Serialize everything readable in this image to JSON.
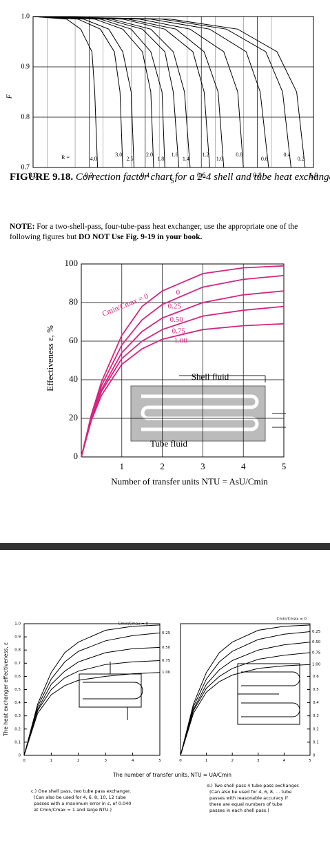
{
  "chart_data": [
    {
      "type": "line",
      "x_label": "S",
      "y_label": "F",
      "annotation": "R =",
      "color": "#000000",
      "grid": true,
      "xlim": [
        0,
        1
      ],
      "xticks": [
        {
          "value": 0,
          "label": "0.0"
        },
        0.2,
        0.4,
        0.6,
        0.8,
        {
          "value": 1,
          "label": "1.0"
        }
      ],
      "ylim": [
        0.7,
        1
      ],
      "yticks": [
        0.7,
        0.8,
        0.9,
        {
          "value": 1,
          "label": "1.0"
        }
      ],
      "series": [
        {
          "name": "4.0",
          "x": [
            0,
            0.12,
            0.17,
            0.21,
            0.22,
            0.23
          ],
          "values": [
            1,
            0.995,
            0.975,
            0.93,
            0.85,
            0.7
          ]
        },
        {
          "name": "3.0",
          "x": [
            0,
            0.16,
            0.24,
            0.29,
            0.31,
            0.32
          ],
          "values": [
            1,
            0.995,
            0.975,
            0.93,
            0.85,
            0.7
          ]
        },
        {
          "name": "2.5",
          "x": [
            0,
            0.18,
            0.27,
            0.32,
            0.35,
            0.36
          ],
          "values": [
            1,
            0.995,
            0.975,
            0.93,
            0.85,
            0.7
          ]
        },
        {
          "name": "2.0",
          "x": [
            0,
            0.22,
            0.32,
            0.39,
            0.42,
            0.43
          ],
          "values": [
            1,
            0.995,
            0.975,
            0.93,
            0.85,
            0.7
          ]
        },
        {
          "name": "1.8",
          "x": [
            0,
            0.24,
            0.35,
            0.42,
            0.46,
            0.47
          ],
          "values": [
            1,
            0.995,
            0.975,
            0.93,
            0.85,
            0.7
          ]
        },
        {
          "name": "1.6",
          "x": [
            0,
            0.26,
            0.39,
            0.47,
            0.5,
            0.52
          ],
          "values": [
            1,
            0.995,
            0.975,
            0.93,
            0.85,
            0.7
          ]
        },
        {
          "name": "1.4",
          "x": [
            0,
            0.28,
            0.42,
            0.5,
            0.54,
            0.56
          ],
          "values": [
            1,
            0.995,
            0.975,
            0.93,
            0.85,
            0.7
          ]
        },
        {
          "name": "1.2",
          "x": [
            0,
            0.32,
            0.47,
            0.57,
            0.61,
            0.63
          ],
          "values": [
            1,
            0.995,
            0.975,
            0.93,
            0.85,
            0.7
          ]
        },
        {
          "name": "1.0",
          "x": [
            0,
            0.34,
            0.51,
            0.61,
            0.66,
            0.68
          ],
          "values": [
            1,
            0.995,
            0.975,
            0.93,
            0.85,
            0.7
          ]
        },
        {
          "name": "0.8",
          "x": [
            0,
            0.38,
            0.56,
            0.68,
            0.73,
            0.75
          ],
          "values": [
            1,
            0.995,
            0.975,
            0.93,
            0.85,
            0.7
          ]
        },
        {
          "name": "0.6",
          "x": [
            0,
            0.42,
            0.63,
            0.76,
            0.81,
            0.84
          ],
          "values": [
            1,
            0.995,
            0.975,
            0.93,
            0.85,
            0.7
          ]
        },
        {
          "name": "0.4",
          "x": [
            0,
            0.46,
            0.69,
            0.83,
            0.89,
            0.92
          ],
          "values": [
            1,
            0.995,
            0.975,
            0.93,
            0.85,
            0.7
          ]
        },
        {
          "name": "0.2",
          "x": [
            0,
            0.49,
            0.73,
            0.87,
            0.94,
            0.97
          ],
          "values": [
            1,
            0.995,
            0.975,
            0.93,
            0.85,
            0.7
          ]
        }
      ]
    },
    {
      "type": "line",
      "x_label": "Number of transfer units NTU = AsU/Cmin",
      "y_label": "Effectiveness ε, %",
      "annotation": "Cmin/Cmax = 0",
      "labels": [
        "Shell fluid",
        "Tube fluid"
      ],
      "color": "#d6247f",
      "grid": true,
      "xlim": [
        0,
        5
      ],
      "xticks": [
        1,
        2,
        3,
        4,
        5
      ],
      "ylim": [
        0,
        100
      ],
      "yticks": [
        0,
        20,
        40,
        60,
        80,
        100
      ],
      "x": [
        0,
        0.25,
        0.5,
        1,
        1.5,
        2,
        3,
        4,
        5
      ],
      "series": [
        {
          "name": "0.25",
          "values": [
            0,
            21,
            37,
            58,
            71,
            79,
            88,
            92,
            94
          ]
        },
        {
          "name": "0.50",
          "values": [
            0,
            20,
            35,
            54,
            65,
            72,
            80,
            84,
            86
          ]
        },
        {
          "name": "0.75",
          "values": [
            0,
            20,
            34,
            51,
            60,
            66,
            73,
            76,
            78
          ]
        },
        {
          "name": "1.00",
          "values": [
            0,
            19,
            32,
            48,
            56,
            61,
            66,
            68,
            69
          ]
        },
        {
          "name": "0",
          "values": [
            0,
            22,
            39,
            63,
            78,
            86,
            95,
            98,
            99
          ]
        }
      ]
    },
    {
      "type": "line",
      "x_label": "The number of transfer units, NTU = UA/Cmin",
      "y_label": "The heat exchanger effectiveness, ε",
      "annotation": "Cmin/Cmax = 0",
      "color": "#000000",
      "grid": false,
      "caption": [
        "c.) One shell pass, two tube pass exchanger.",
        "(Can also be used for 4, 6, 8, 10, 12 tube",
        "passes with a maximum error in ε, of 0.040",
        "at Cmin/Cmax = 1 and large NTU.)"
      ],
      "xlim": [
        0,
        5
      ],
      "xticks": [
        0,
        1,
        2,
        3,
        4,
        5
      ],
      "ylim": [
        0,
        1
      ],
      "yticks": [
        0,
        0.1,
        0.2,
        0.3,
        0.4,
        0.5,
        0.6,
        0.7,
        0.8,
        0.9,
        {
          "value": 1,
          "label": "1.0"
        }
      ],
      "x": [
        0,
        0.5,
        1,
        1.5,
        2,
        3,
        4,
        5
      ],
      "series": [
        {
          "name": "0.25",
          "values": [
            0,
            0.37,
            0.58,
            0.71,
            0.79,
            0.87,
            0.91,
            0.93
          ]
        },
        {
          "name": "0.50",
          "values": [
            0,
            0.35,
            0.54,
            0.64,
            0.71,
            0.78,
            0.81,
            0.82
          ]
        },
        {
          "name": "0.75",
          "values": [
            0,
            0.34,
            0.5,
            0.59,
            0.64,
            0.69,
            0.71,
            0.72
          ]
        },
        {
          "name": "1.00",
          "values": [
            0,
            0.32,
            0.46,
            0.53,
            0.57,
            0.6,
            0.62,
            0.63
          ]
        },
        {
          "name": "",
          "values": [
            0,
            0.39,
            0.63,
            0.78,
            0.86,
            0.95,
            0.98,
            0.99
          ]
        }
      ]
    },
    {
      "type": "line",
      "annotation": "Cmin/Cmax = 0",
      "color": "#000000",
      "grid": false,
      "caption": [
        "d.) Two shell pass 4 tube pass exchanger.",
        "(Can also be used for 4, 6, 8, ... tube",
        "passes with reasonable accuracy if",
        "there are equal numbers of tube",
        "passes in each shell pass.)"
      ],
      "xlim": [
        0,
        5
      ],
      "xticks": [
        0,
        1,
        2,
        3,
        4,
        5
      ],
      "ylim": [
        0,
        1
      ],
      "yticks": [
        0,
        0.1,
        0.2,
        0.3,
        0.4,
        0.5,
        0.6
      ],
      "x": [
        0,
        0.5,
        1,
        1.5,
        2,
        3,
        4,
        5
      ],
      "series": [
        {
          "name": "0.25",
          "values": [
            0,
            0.37,
            0.58,
            0.71,
            0.79,
            0.88,
            0.92,
            0.94
          ]
        },
        {
          "name": "0.50",
          "values": [
            0,
            0.35,
            0.54,
            0.65,
            0.72,
            0.8,
            0.84,
            0.86
          ]
        },
        {
          "name": "0.75",
          "values": [
            0,
            0.34,
            0.51,
            0.6,
            0.66,
            0.73,
            0.76,
            0.78
          ]
        },
        {
          "name": "1.00",
          "values": [
            0,
            0.32,
            0.48,
            0.56,
            0.61,
            0.66,
            0.68,
            0.69
          ]
        },
        {
          "name": "",
          "values": [
            0,
            0.39,
            0.63,
            0.78,
            0.86,
            0.95,
            0.98,
            0.99
          ]
        }
      ]
    }
  ],
  "figure_caption": {
    "label": "FIGURE 9.18.",
    "text": "Correction factor chart for a 2-4 shell and tube heat exchanger."
  },
  "note": {
    "label": "NOTE:",
    "text": "For a two-shell-pass, four-tube-pass heat exchanger, use the appropriate one of the following figures but",
    "emphasis": "DO NOT Use Fig. 9-19 in your book."
  }
}
